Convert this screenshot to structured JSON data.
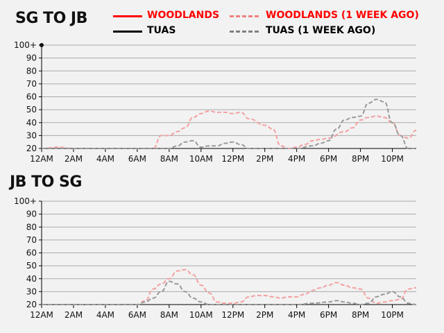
{
  "charts": [
    {
      "title": "SG TO JB"
    },
    {
      "title": "JB TO SG"
    }
  ],
  "legend": [
    {
      "label": "WOODLANDS",
      "color": "#ff0000",
      "dash": false,
      "text_color": "#ff0000"
    },
    {
      "label": "WOODLANDS (1 WEEK AGO)",
      "color": "#f08080",
      "dash": true,
      "text_color": "#ff0000"
    },
    {
      "label": "TUAS",
      "color": "#000000",
      "dash": false,
      "text_color": "#000000"
    },
    {
      "label": "TUAS (1 WEEK AGO)",
      "color": "#808080",
      "dash": true,
      "text_color": "#000000"
    }
  ],
  "chart_data": [
    {
      "type": "line",
      "title": "SG TO JB",
      "x_ticks": [
        "12AM",
        "2AM",
        "4AM",
        "6AM",
        "8AM",
        "10AM",
        "12PM",
        "2PM",
        "4PM",
        "6PM",
        "8PM",
        "10PM"
      ],
      "y_ticks": [
        "100+",
        "90",
        "80",
        "70",
        "60",
        "50",
        "40",
        "30",
        "20"
      ],
      "ylim": [
        20,
        100
      ],
      "xlim": [
        0,
        23.5
      ],
      "grid": true,
      "series": [
        {
          "name": "WOODLANDS (1 WEEK AGO)",
          "color": "#f4a0a0",
          "dash": true,
          "points": [
            [
              0,
              20
            ],
            [
              1,
              21
            ],
            [
              2,
              20
            ],
            [
              3,
              20
            ],
            [
              4,
              20
            ],
            [
              5,
              20
            ],
            [
              6,
              20
            ],
            [
              7,
              20
            ],
            [
              7.5,
              30
            ],
            [
              8,
              30
            ],
            [
              8.5,
              33
            ],
            [
              9,
              36
            ],
            [
              9.5,
              44
            ],
            [
              10,
              47
            ],
            [
              10.5,
              49
            ],
            [
              11,
              48
            ],
            [
              11.5,
              48
            ],
            [
              12,
              47
            ],
            [
              12.5,
              48
            ],
            [
              13,
              43
            ],
            [
              14,
              38
            ],
            [
              14.5,
              35
            ],
            [
              15,
              22
            ],
            [
              15.5,
              20
            ],
            [
              16,
              21
            ],
            [
              16.5,
              23
            ],
            [
              17,
              26
            ],
            [
              17.5,
              27
            ],
            [
              18,
              28
            ],
            [
              19,
              33
            ],
            [
              19.5,
              36
            ],
            [
              20,
              42
            ],
            [
              20.5,
              44
            ],
            [
              21,
              45
            ],
            [
              21.5,
              44
            ],
            [
              22,
              40
            ],
            [
              22.5,
              30
            ],
            [
              23,
              28
            ],
            [
              23.5,
              34
            ]
          ]
        },
        {
          "name": "TUAS (1 WEEK AGO)",
          "color": "#999999",
          "dash": true,
          "points": [
            [
              0,
              20
            ],
            [
              2,
              20
            ],
            [
              4,
              20
            ],
            [
              6,
              20
            ],
            [
              7,
              20
            ],
            [
              8,
              20
            ],
            [
              8.5,
              22
            ],
            [
              9,
              25
            ],
            [
              9.5,
              26
            ],
            [
              10,
              21
            ],
            [
              10.5,
              22
            ],
            [
              11,
              22
            ],
            [
              11.5,
              24
            ],
            [
              12,
              25
            ],
            [
              12.5,
              23
            ],
            [
              13,
              20
            ],
            [
              14,
              20
            ],
            [
              15,
              20
            ],
            [
              16,
              20
            ],
            [
              17,
              22
            ],
            [
              17.5,
              24
            ],
            [
              18,
              26
            ],
            [
              18.5,
              35
            ],
            [
              19,
              42
            ],
            [
              19.5,
              44
            ],
            [
              20,
              45
            ],
            [
              20.5,
              55
            ],
            [
              21,
              58
            ],
            [
              21.5,
              56
            ],
            [
              22,
              40
            ],
            [
              22.5,
              30
            ],
            [
              23,
              20
            ],
            [
              23.5,
              20
            ]
          ]
        }
      ]
    },
    {
      "type": "line",
      "title": "JB TO SG",
      "x_ticks": [
        "12AM",
        "2AM",
        "4AM",
        "6AM",
        "8AM",
        "10AM",
        "12PM",
        "2PM",
        "4PM",
        "6PM",
        "8PM",
        "10PM"
      ],
      "y_ticks": [
        "100+",
        "90",
        "80",
        "70",
        "60",
        "50",
        "40",
        "30",
        "20"
      ],
      "ylim": [
        20,
        100
      ],
      "xlim": [
        0,
        23.5
      ],
      "grid": true,
      "series": [
        {
          "name": "WOODLANDS (1 WEEK AGO)",
          "color": "#f4a0a0",
          "dash": true,
          "points": [
            [
              0,
              20
            ],
            [
              2,
              20
            ],
            [
              4,
              20
            ],
            [
              6,
              20
            ],
            [
              6.5,
              23
            ],
            [
              7,
              32
            ],
            [
              7.5,
              36
            ],
            [
              8,
              40
            ],
            [
              8.5,
              46
            ],
            [
              9,
              47
            ],
            [
              9.5,
              43
            ],
            [
              10,
              35
            ],
            [
              10.5,
              29
            ],
            [
              11,
              22
            ],
            [
              11.5,
              21
            ],
            [
              12,
              21
            ],
            [
              12.5,
              22
            ],
            [
              13,
              26
            ],
            [
              13.5,
              27
            ],
            [
              14,
              27
            ],
            [
              14.5,
              26
            ],
            [
              15,
              25
            ],
            [
              15.5,
              26
            ],
            [
              16,
              26
            ],
            [
              16.5,
              28
            ],
            [
              17,
              31
            ],
            [
              17.5,
              33
            ],
            [
              18,
              35
            ],
            [
              18.5,
              37
            ],
            [
              19,
              35
            ],
            [
              19.5,
              33
            ],
            [
              20,
              32
            ],
            [
              20.5,
              25
            ],
            [
              21,
              21
            ],
            [
              21.5,
              22
            ],
            [
              22,
              23
            ],
            [
              22.5,
              24
            ],
            [
              23,
              32
            ],
            [
              23.5,
              33
            ],
            [
              24,
              22
            ]
          ]
        },
        {
          "name": "TUAS (1 WEEK AGO)",
          "color": "#999999",
          "dash": true,
          "points": [
            [
              0,
              20
            ],
            [
              2,
              20
            ],
            [
              4,
              20
            ],
            [
              6,
              20
            ],
            [
              6.5,
              22
            ],
            [
              7,
              25
            ],
            [
              7.5,
              30
            ],
            [
              8,
              38
            ],
            [
              8.5,
              36
            ],
            [
              9,
              30
            ],
            [
              9.5,
              25
            ],
            [
              10,
              22
            ],
            [
              10.5,
              20
            ],
            [
              11,
              20
            ],
            [
              12,
              20
            ],
            [
              13,
              20
            ],
            [
              14,
              20
            ],
            [
              15,
              20
            ],
            [
              16,
              20
            ],
            [
              17,
              21
            ],
            [
              18,
              22
            ],
            [
              18.5,
              23
            ],
            [
              19,
              22
            ],
            [
              19.5,
              21
            ],
            [
              20,
              20
            ],
            [
              20.5,
              21
            ],
            [
              21,
              26
            ],
            [
              21.5,
              28
            ],
            [
              22,
              30
            ],
            [
              22.5,
              26
            ],
            [
              23,
              21
            ],
            [
              23.5,
              20
            ]
          ]
        }
      ]
    }
  ]
}
